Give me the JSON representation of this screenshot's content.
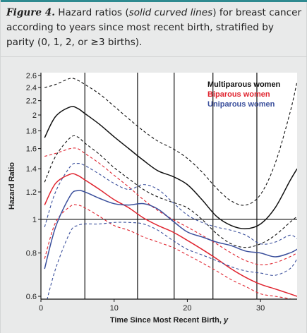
{
  "caption": {
    "figure_label": "Figure 4.",
    "part1": " Hazard ratios (",
    "emphasis": "solid curved lines",
    "part2": ") for breast cancer according to years since most recent birth, stratified by parity (0, 1, 2, or ≥3 births)."
  },
  "colors": {
    "frame_accent": "#2e8a90",
    "multiparous": "#111111",
    "biparous": "#e0242f",
    "uniparous": "#3a4f9c"
  },
  "chart_data": {
    "type": "line",
    "xlabel": "Time Since Most Recent Birth, y",
    "xlabel_main": "Time Since Most Recent Birth, ",
    "xlabel_var": "y",
    "ylabel": "Hazard Ratio",
    "scale_y": "log",
    "xlim": [
      0,
      35
    ],
    "ylim": [
      0.6,
      2.6
    ],
    "xticks": [
      0,
      10,
      20,
      30
    ],
    "yticks": [
      0.6,
      0.8,
      1,
      1.2,
      1.4,
      1.6,
      1.8,
      2,
      2.2,
      2.4,
      2.6
    ],
    "ytick_labels": [
      "0.6",
      "0.8",
      "1",
      "1.2",
      "1.4",
      "1.6",
      "1.8",
      "2",
      "2.2",
      "2.4",
      "2.6"
    ],
    "reference_line_y": 1,
    "knots_x": [
      6,
      13.2,
      18.2,
      23.5,
      29.5
    ],
    "legend_position": "top-right",
    "series": [
      {
        "name": "Multiparous women",
        "color": "#111111",
        "x": [
          0.5,
          2,
          4,
          5,
          6,
          8,
          10,
          12,
          14,
          16,
          18,
          20,
          22,
          24,
          26,
          28,
          30,
          32,
          34,
          35
        ],
        "y": [
          1.72,
          1.98,
          2.11,
          2.09,
          2.02,
          1.88,
          1.73,
          1.6,
          1.48,
          1.38,
          1.33,
          1.26,
          1.14,
          1.02,
          0.96,
          0.94,
          0.97,
          1.08,
          1.29,
          1.4
        ],
        "lower": [
          1.28,
          1.52,
          1.72,
          1.73,
          1.66,
          1.54,
          1.41,
          1.31,
          1.22,
          1.16,
          1.12,
          1.08,
          1.0,
          0.91,
          0.85,
          0.83,
          0.85,
          0.9,
          0.98,
          1.02
        ],
        "upper": [
          2.4,
          2.45,
          2.55,
          2.52,
          2.45,
          2.3,
          2.12,
          1.95,
          1.8,
          1.68,
          1.6,
          1.5,
          1.37,
          1.23,
          1.13,
          1.1,
          1.18,
          1.45,
          2.02,
          2.5
        ]
      },
      {
        "name": "Biparous women",
        "color": "#e0242f",
        "x": [
          0.5,
          2,
          4,
          5,
          6,
          8,
          10,
          12,
          14,
          16,
          18,
          20,
          22,
          24,
          26,
          28,
          30,
          32,
          34,
          35
        ],
        "y": [
          1.1,
          1.27,
          1.35,
          1.34,
          1.3,
          1.22,
          1.14,
          1.08,
          1.01,
          0.96,
          0.92,
          0.87,
          0.82,
          0.77,
          0.72,
          0.68,
          0.65,
          0.63,
          0.61,
          0.6
        ],
        "lower": [
          0.77,
          0.98,
          1.09,
          1.1,
          1.08,
          1.02,
          0.96,
          0.93,
          0.89,
          0.86,
          0.83,
          0.79,
          0.75,
          0.71,
          0.67,
          0.64,
          0.61,
          0.6,
          0.59,
          0.58
        ],
        "upper": [
          1.52,
          1.55,
          1.6,
          1.6,
          1.55,
          1.45,
          1.34,
          1.24,
          1.14,
          1.06,
          1.0,
          0.95,
          0.9,
          0.85,
          0.8,
          0.76,
          0.74,
          0.75,
          0.78,
          0.8
        ]
      },
      {
        "name": "Uniparous women",
        "color": "#3a4f9c",
        "x": [
          0.5,
          2,
          4,
          5,
          6,
          8,
          10,
          12,
          14,
          16,
          18,
          20,
          22,
          24,
          26,
          28,
          30,
          32,
          34,
          35
        ],
        "y": [
          0.72,
          0.95,
          1.17,
          1.21,
          1.2,
          1.15,
          1.11,
          1.1,
          1.11,
          1.07,
          0.99,
          0.92,
          0.89,
          0.86,
          0.84,
          0.81,
          0.8,
          0.78,
          0.8,
          0.82
        ],
        "lower": [
          0.55,
          0.72,
          0.92,
          0.96,
          0.97,
          0.97,
          0.98,
          0.98,
          0.97,
          0.93,
          0.87,
          0.82,
          0.79,
          0.76,
          0.73,
          0.71,
          0.7,
          0.69,
          0.72,
          0.77
        ],
        "upper": [
          0.95,
          1.2,
          1.42,
          1.45,
          1.43,
          1.35,
          1.27,
          1.22,
          1.26,
          1.22,
          1.12,
          1.03,
          0.98,
          0.95,
          0.93,
          0.9,
          0.85,
          0.86,
          0.9,
          0.88
        ]
      }
    ]
  }
}
